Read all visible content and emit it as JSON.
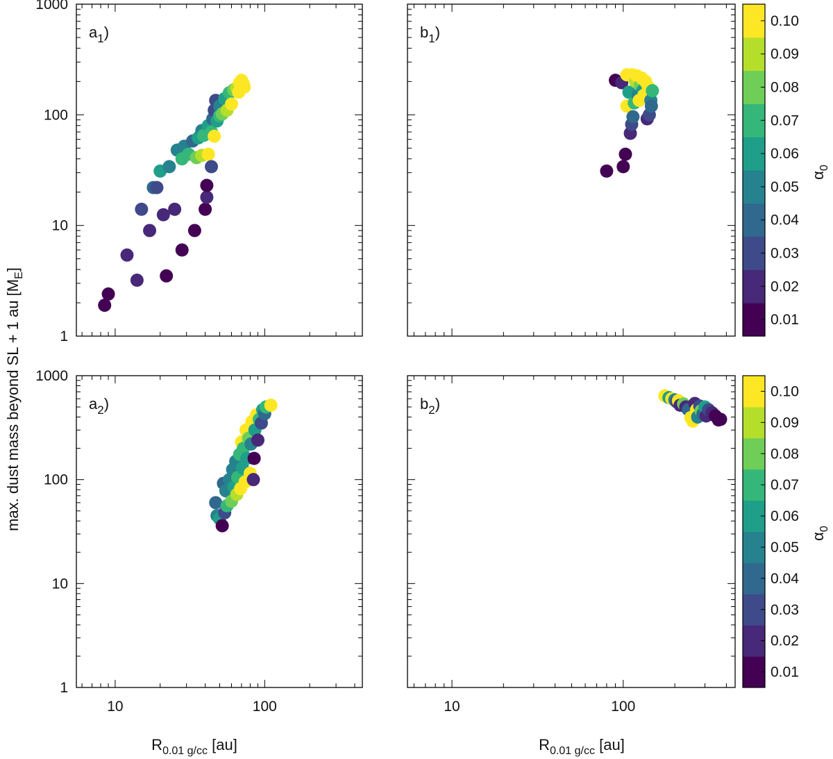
{
  "figure": {
    "ylabel": "max. dust mass beyond SL + 1 au [M",
    "ylabel_sub": "E",
    "ylabel_end": "]",
    "xlabel_main": "R",
    "xlabel_sub": "0.01 g/cc",
    "xlabel_end": " [au]",
    "colorbar_title": "α",
    "colorbar_title_sub": "0",
    "colorbar_ticks": [
      "0.01",
      "0.02",
      "0.03",
      "0.04",
      "0.05",
      "0.06",
      "0.07",
      "0.08",
      "0.09",
      "0.10"
    ],
    "colorbar_levels": [
      "#440154",
      "#482878",
      "#3e4a89",
      "#31688e",
      "#26828e",
      "#1f9e89",
      "#35b779",
      "#6ece58",
      "#b5de2b",
      "#fde725"
    ],
    "x_tick_labels": [
      "10",
      "100"
    ],
    "y_tick_labels": [
      "1",
      "10",
      "100",
      "1000"
    ]
  },
  "chart_data": [
    {
      "panel": "a1",
      "label_main": "a",
      "label_sub": "1",
      "label_end": ")",
      "type": "scatter",
      "xscale": "log",
      "yscale": "log",
      "xlim": [
        5.5,
        450
      ],
      "ylim": [
        1,
        1000
      ],
      "color_key": "alpha0",
      "points": [
        [
          8.5,
          1.9,
          0.01
        ],
        [
          9,
          2.4,
          0.01
        ],
        [
          12,
          5.4,
          0.02
        ],
        [
          14,
          3.2,
          0.02
        ],
        [
          15,
          14,
          0.03
        ],
        [
          17,
          9,
          0.02
        ],
        [
          18,
          22,
          0.04
        ],
        [
          19,
          22,
          0.03
        ],
        [
          21,
          12.5,
          0.02
        ],
        [
          22,
          3.5,
          0.01
        ],
        [
          20,
          31,
          0.06
        ],
        [
          23,
          34,
          0.05
        ],
        [
          25,
          14,
          0.02
        ],
        [
          26,
          48,
          0.05
        ],
        [
          28,
          6,
          0.01
        ],
        [
          28,
          40,
          0.07
        ],
        [
          29,
          52,
          0.05
        ],
        [
          31,
          44,
          0.07
        ],
        [
          33,
          58,
          0.04
        ],
        [
          34,
          9,
          0.01
        ],
        [
          35,
          41,
          0.08
        ],
        [
          36,
          62,
          0.06
        ],
        [
          38,
          72,
          0.05
        ],
        [
          38,
          43,
          0.09
        ],
        [
          39,
          65,
          0.07
        ],
        [
          40,
          14,
          0.01
        ],
        [
          41,
          18,
          0.02
        ],
        [
          41,
          23,
          0.01
        ],
        [
          42,
          80,
          0.06
        ],
        [
          42,
          44,
          0.1
        ],
        [
          44,
          70,
          0.07
        ],
        [
          44,
          34,
          0.03
        ],
        [
          45,
          92,
          0.04
        ],
        [
          46,
          64,
          0.1
        ],
        [
          46,
          110,
          0.03
        ],
        [
          47,
          135,
          0.03
        ],
        [
          48,
          88,
          0.06
        ],
        [
          50,
          98,
          0.07
        ],
        [
          50,
          120,
          0.05
        ],
        [
          52,
          102,
          0.08
        ],
        [
          54,
          140,
          0.06
        ],
        [
          56,
          110,
          0.09
        ],
        [
          58,
          158,
          0.07
        ],
        [
          60,
          125,
          0.1
        ],
        [
          62,
          168,
          0.08
        ],
        [
          65,
          175,
          0.09
        ],
        [
          67,
          160,
          0.1
        ],
        [
          68,
          195,
          0.1
        ],
        [
          70,
          205,
          0.1
        ],
        [
          72,
          190,
          0.1
        ],
        [
          73,
          178,
          0.1
        ]
      ]
    },
    {
      "panel": "b1",
      "label_main": "b",
      "label_sub": "1",
      "label_end": ")",
      "type": "scatter",
      "xscale": "log",
      "yscale": "log",
      "xlim": [
        5.5,
        450
      ],
      "ylim": [
        1,
        1000
      ],
      "color_key": "alpha0",
      "points": [
        [
          80,
          31,
          0.01
        ],
        [
          90,
          205,
          0.01
        ],
        [
          98,
          195,
          0.02
        ],
        [
          100,
          34,
          0.01
        ],
        [
          103,
          44,
          0.01
        ],
        [
          105,
          120,
          0.1
        ],
        [
          105,
          230,
          0.1
        ],
        [
          108,
          160,
          0.06
        ],
        [
          110,
          68,
          0.02
        ],
        [
          112,
          82,
          0.03
        ],
        [
          113,
          230,
          0.1
        ],
        [
          114,
          96,
          0.04
        ],
        [
          116,
          128,
          0.07
        ],
        [
          118,
          200,
          0.09
        ],
        [
          120,
          225,
          0.1
        ],
        [
          122,
          150,
          0.05
        ],
        [
          124,
          135,
          0.1
        ],
        [
          126,
          185,
          0.08
        ],
        [
          128,
          215,
          0.1
        ],
        [
          130,
          165,
          0.06
        ],
        [
          132,
          150,
          0.1
        ],
        [
          135,
          200,
          0.1
        ],
        [
          138,
          92,
          0.02
        ],
        [
          140,
          180,
          0.1
        ],
        [
          142,
          100,
          0.03
        ],
        [
          145,
          135,
          0.05
        ],
        [
          146,
          120,
          0.04
        ],
        [
          148,
          165,
          0.07
        ]
      ]
    },
    {
      "panel": "a2",
      "label_main": "a",
      "label_sub": "2",
      "label_end": ")",
      "type": "scatter",
      "xscale": "log",
      "yscale": "log",
      "xlim": [
        5.5,
        450
      ],
      "ylim": [
        1,
        1000
      ],
      "color_key": "alpha0",
      "points": [
        [
          47,
          60,
          0.04
        ],
        [
          48,
          45,
          0.05
        ],
        [
          50,
          42,
          0.06
        ],
        [
          52,
          36,
          0.01
        ],
        [
          53,
          92,
          0.04
        ],
        [
          54,
          48,
          0.03
        ],
        [
          55,
          78,
          0.05
        ],
        [
          56,
          56,
          0.07
        ],
        [
          58,
          100,
          0.05
        ],
        [
          60,
          62,
          0.08
        ],
        [
          61,
          125,
          0.05
        ],
        [
          62,
          85,
          0.06
        ],
        [
          64,
          150,
          0.05
        ],
        [
          65,
          72,
          0.09
        ],
        [
          66,
          105,
          0.07
        ],
        [
          68,
          175,
          0.07
        ],
        [
          69,
          82,
          0.1
        ],
        [
          70,
          230,
          0.1
        ],
        [
          71,
          130,
          0.06
        ],
        [
          72,
          200,
          0.07
        ],
        [
          74,
          95,
          0.1
        ],
        [
          75,
          300,
          0.1
        ],
        [
          76,
          160,
          0.06
        ],
        [
          78,
          250,
          0.08
        ],
        [
          80,
          115,
          0.1
        ],
        [
          81,
          220,
          0.05
        ],
        [
          82,
          360,
          0.1
        ],
        [
          84,
          100,
          0.02
        ],
        [
          85,
          160,
          0.01
        ],
        [
          86,
          300,
          0.06
        ],
        [
          88,
          420,
          0.1
        ],
        [
          90,
          240,
          0.02
        ],
        [
          92,
          380,
          0.07
        ],
        [
          95,
          350,
          0.03
        ],
        [
          97,
          470,
          0.06
        ],
        [
          100,
          430,
          0.04
        ],
        [
          102,
          500,
          0.07
        ],
        [
          110,
          520,
          0.1
        ]
      ]
    },
    {
      "panel": "b2",
      "label_main": "b",
      "label_sub": "2",
      "label_end": ")",
      "type": "scatter",
      "xscale": "log",
      "yscale": "log",
      "xlim": [
        5.5,
        450
      ],
      "ylim": [
        1,
        1000
      ],
      "color_key": "alpha0",
      "points": [
        [
          175,
          640,
          0.1
        ],
        [
          185,
          615,
          0.06
        ],
        [
          192,
          600,
          0.1
        ],
        [
          200,
          585,
          0.05
        ],
        [
          205,
          560,
          0.03
        ],
        [
          210,
          575,
          0.1
        ],
        [
          215,
          520,
          0.02
        ],
        [
          225,
          535,
          0.08
        ],
        [
          232,
          500,
          0.02
        ],
        [
          240,
          470,
          0.04
        ],
        [
          248,
          395,
          0.1
        ],
        [
          255,
          365,
          0.1
        ],
        [
          262,
          540,
          0.02
        ],
        [
          268,
          470,
          0.1
        ],
        [
          272,
          400,
          0.05
        ],
        [
          280,
          510,
          0.03
        ],
        [
          285,
          460,
          0.08
        ],
        [
          292,
          430,
          0.04
        ],
        [
          300,
          500,
          0.06
        ],
        [
          305,
          410,
          0.02
        ],
        [
          315,
          470,
          0.03
        ],
        [
          330,
          440,
          0.02
        ],
        [
          345,
          410,
          0.01
        ],
        [
          360,
          375,
          0.01
        ],
        [
          370,
          380,
          0.01
        ]
      ]
    }
  ]
}
